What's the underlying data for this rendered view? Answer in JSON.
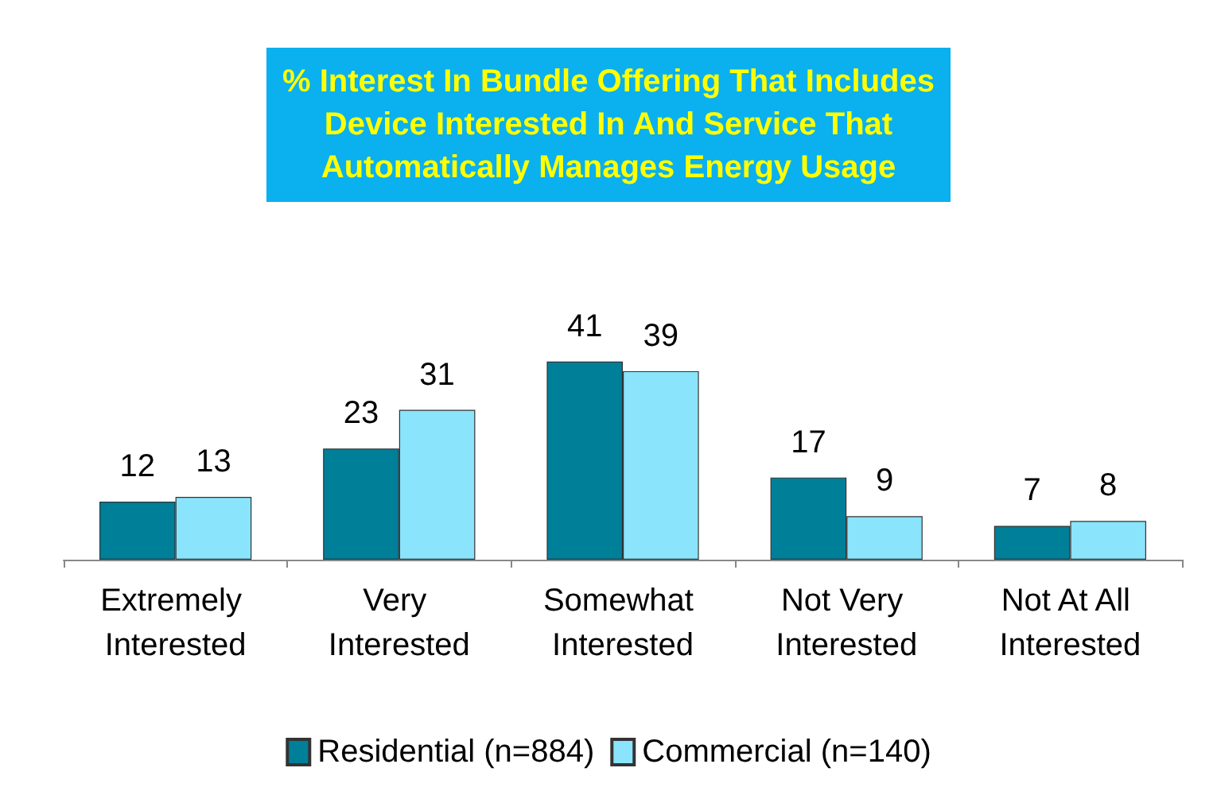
{
  "chart_data": {
    "type": "bar",
    "title": "% Interest In Bundle Offering That Includes\nDevice Interested In And Service That\nAutomatically Manages Energy Usage",
    "categories": [
      "Extremely Interested",
      "Very Interested",
      "Somewhat Interested",
      "Not Very Interested",
      "Not At All Interested"
    ],
    "series": [
      {
        "name": "Residential (n=884)",
        "color": "#007f99",
        "values": [
          12,
          23,
          41,
          17,
          7
        ]
      },
      {
        "name": "Commercial (n=140)",
        "color": "#8ae4fb",
        "values": [
          13,
          31,
          39,
          9,
          8
        ]
      }
    ],
    "data_labels": true,
    "legend": "bottom"
  }
}
